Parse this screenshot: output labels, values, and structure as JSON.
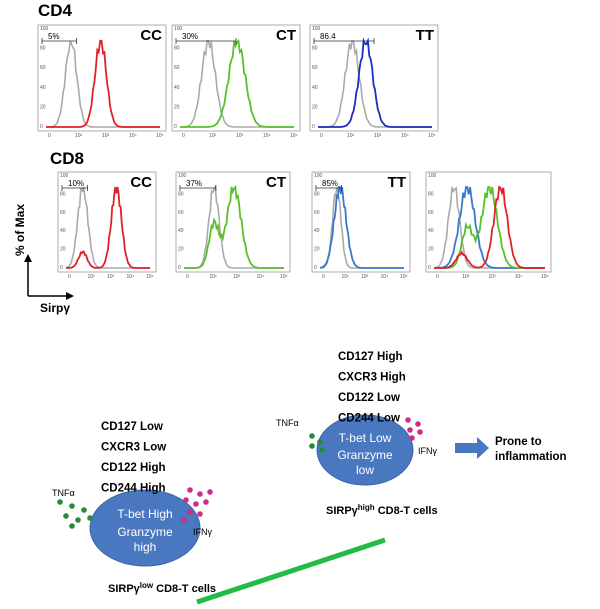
{
  "cd4": {
    "label": "CD4",
    "panels": [
      {
        "genotype": "CC",
        "gate": "5%"
      },
      {
        "genotype": "CT",
        "gate": "30%"
      },
      {
        "genotype": "TT",
        "gate": "86.4"
      }
    ]
  },
  "cd8": {
    "label": "CD8",
    "panels": [
      {
        "genotype": "CC",
        "gate": "10%"
      },
      {
        "genotype": "CT",
        "gate": "37%"
      },
      {
        "genotype": "TT",
        "gate": "85%"
      }
    ]
  },
  "axes": {
    "y_label": "% of Max",
    "x_label": "Sirpγ",
    "x_ticks": [
      "0",
      "10²",
      "10³",
      "10⁴",
      "10⁵"
    ],
    "y_ticks": [
      "0",
      "20",
      "40",
      "60",
      "80",
      "100"
    ]
  },
  "low_cell": {
    "markers": [
      "CD127 Low",
      "CXCR3 Low",
      "CD122 High",
      "CD244 High"
    ],
    "line1": "T-bet High",
    "line2": "Granzyme",
    "line3": "high",
    "tnf": "TNFα",
    "ifn": "IFNγ",
    "caption_main": "SIRPγ",
    "caption_sup": "low",
    "caption_rest": "CD8-T cells"
  },
  "high_cell": {
    "markers": [
      "CD127 High",
      "CXCR3 High",
      "CD122 Low",
      "CD244 Low"
    ],
    "line1": "T-bet Low",
    "line2": "Granzyme",
    "line3": "low",
    "tnf": "TNFα",
    "ifn": "IFNγ",
    "caption_main": "SIRPγ",
    "caption_sup": "high",
    "caption_rest": "CD8-T cells",
    "outcome_1": "Prone to",
    "outcome_2": "inflammation"
  }
}
